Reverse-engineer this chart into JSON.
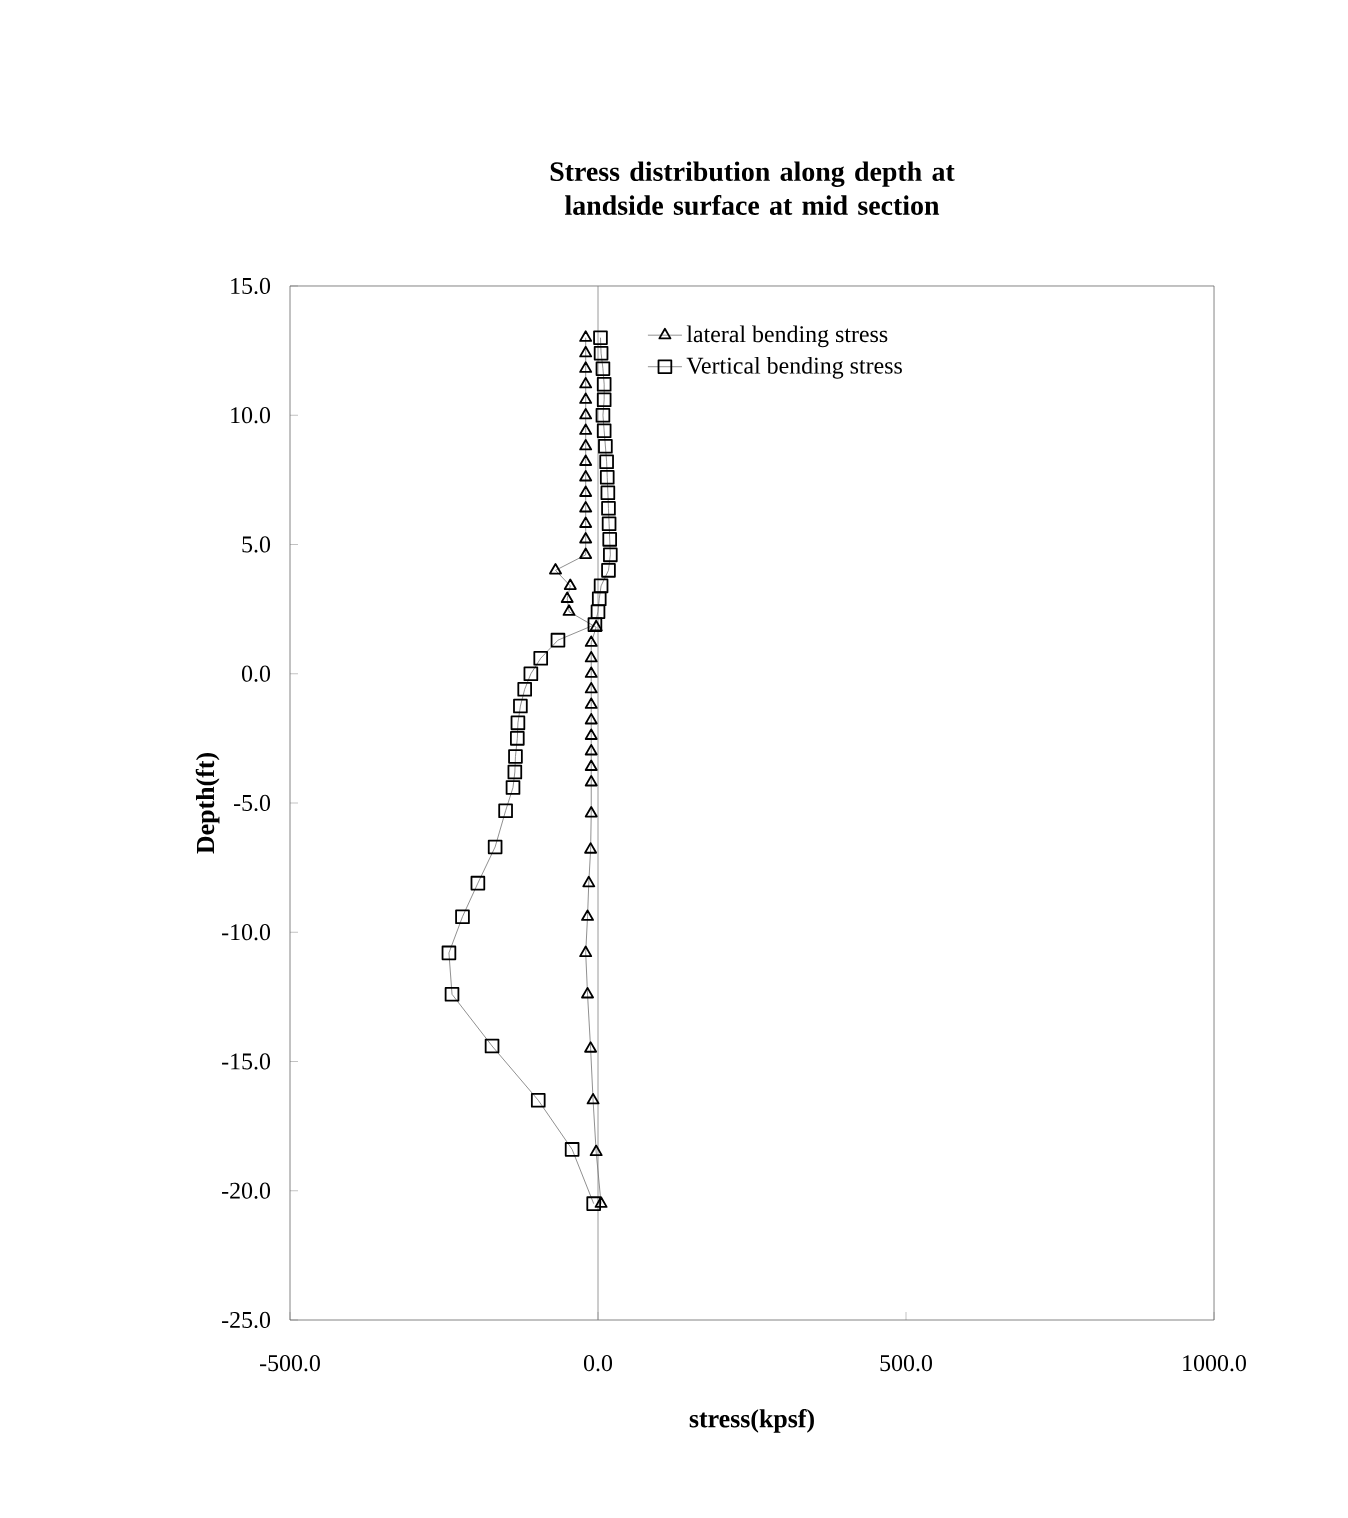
{
  "chart_data": {
    "type": "line",
    "title": "Stress distribution along depth at landside surface at mid section",
    "xlabel": "stress(kpsf)",
    "ylabel": "Depth(ft)",
    "xlim": [
      -500,
      1000
    ],
    "xticks": [
      {
        "value": -500,
        "label": "-500.0"
      },
      {
        "value": 0,
        "label": "0.0"
      },
      {
        "value": 500,
        "label": "500.0"
      },
      {
        "value": 1000,
        "label": "1000.0"
      }
    ],
    "ylim": [
      -25,
      15
    ],
    "yticks": [
      {
        "value": -25,
        "label": "-25.0"
      },
      {
        "value": -20,
        "label": "-20.0"
      },
      {
        "value": -15,
        "label": "-15.0"
      },
      {
        "value": -10,
        "label": "-10.0"
      },
      {
        "value": -5,
        "label": "-5.0"
      },
      {
        "value": 0,
        "label": "0.0"
      },
      {
        "value": 5,
        "label": "5.0"
      },
      {
        "value": 10,
        "label": "10.0"
      },
      {
        "value": 15,
        "label": "15.0"
      }
    ],
    "grid": false,
    "legend": "top right",
    "line_style": "solid",
    "ref_lines": [
      {
        "axis": "x",
        "value": 0,
        "color": "#808080"
      }
    ],
    "series": [
      {
        "name": "lateral bending stress",
        "color": "#000000",
        "marker": "triangle",
        "x": [
          -20,
          -20,
          -20,
          -20,
          -20,
          -20,
          -20,
          -20,
          -20,
          -20,
          -20,
          -20,
          -20,
          -20,
          -20,
          -69,
          -45,
          -50,
          -47,
          -3,
          -11,
          -11,
          -11,
          -11,
          -11,
          -11,
          -11,
          -11,
          -11,
          -11,
          -11,
          -12,
          -15,
          -17,
          -20,
          -17,
          -12,
          -8,
          -3,
          5
        ],
        "values": [
          13.0,
          12.4,
          11.8,
          11.2,
          10.6,
          10.0,
          9.4,
          8.8,
          8.2,
          7.6,
          7.0,
          6.4,
          5.8,
          5.2,
          4.6,
          4.0,
          3.4,
          2.9,
          2.4,
          1.8,
          1.2,
          0.6,
          0.0,
          -0.6,
          -1.2,
          -1.8,
          -2.4,
          -3.0,
          -3.6,
          -4.2,
          -5.4,
          -6.8,
          -8.1,
          -9.4,
          -10.8,
          -12.4,
          -14.5,
          -16.5,
          -18.5,
          -20.5
        ]
      },
      {
        "name": "Vertical  bending stress",
        "color": "#000000",
        "marker": "square",
        "x": [
          4,
          5,
          8,
          10,
          10,
          8,
          10,
          12,
          14,
          15,
          16,
          17,
          18,
          19,
          20,
          17,
          5,
          2,
          0,
          -5,
          -65,
          -93,
          -109,
          -119,
          -126,
          -130,
          -131,
          -134,
          -135,
          -138,
          -150,
          -167,
          -195,
          -220,
          -242,
          -237,
          -172,
          -97,
          -42,
          -7
        ],
        "values": [
          13.0,
          12.4,
          11.8,
          11.2,
          10.6,
          10.0,
          9.4,
          8.8,
          8.2,
          7.6,
          7.0,
          6.4,
          5.8,
          5.2,
          4.6,
          4.0,
          3.4,
          2.9,
          2.4,
          1.9,
          1.3,
          0.6,
          0.0,
          -0.6,
          -1.25,
          -1.9,
          -2.5,
          -3.2,
          -3.8,
          -4.4,
          -5.3,
          -6.7,
          -8.1,
          -9.4,
          -10.8,
          -12.4,
          -14.4,
          -16.5,
          -18.4,
          -20.5
        ]
      }
    ]
  }
}
